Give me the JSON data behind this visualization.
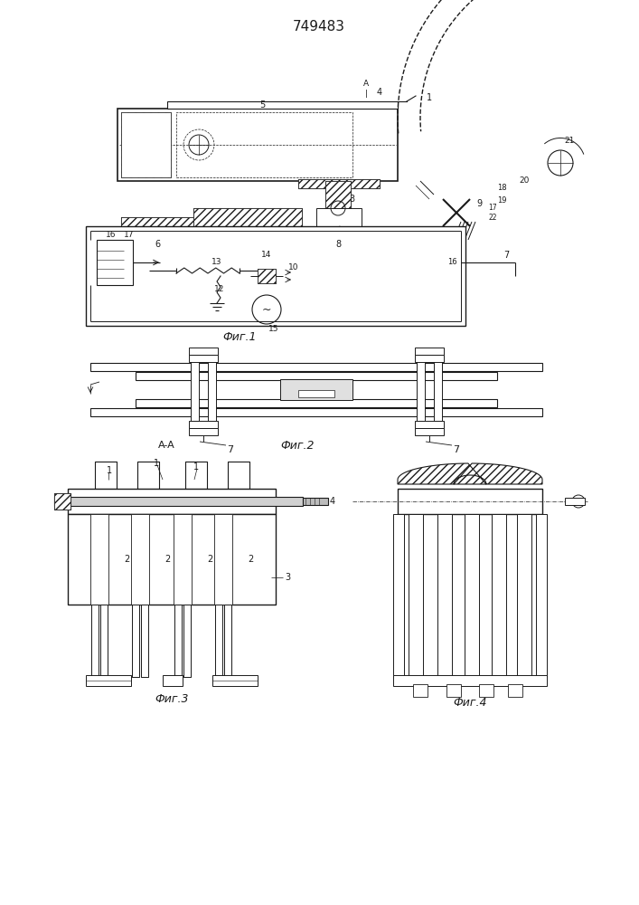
{
  "title": "749483",
  "fig1_label": "Фиг.1",
  "fig2_label": "Фиг.2",
  "fig3_label": "Фиг.3",
  "fig4_label": "Фиг.4",
  "aa_label": "A-A",
  "bg_color": "#ffffff",
  "lc": "#1a1a1a"
}
